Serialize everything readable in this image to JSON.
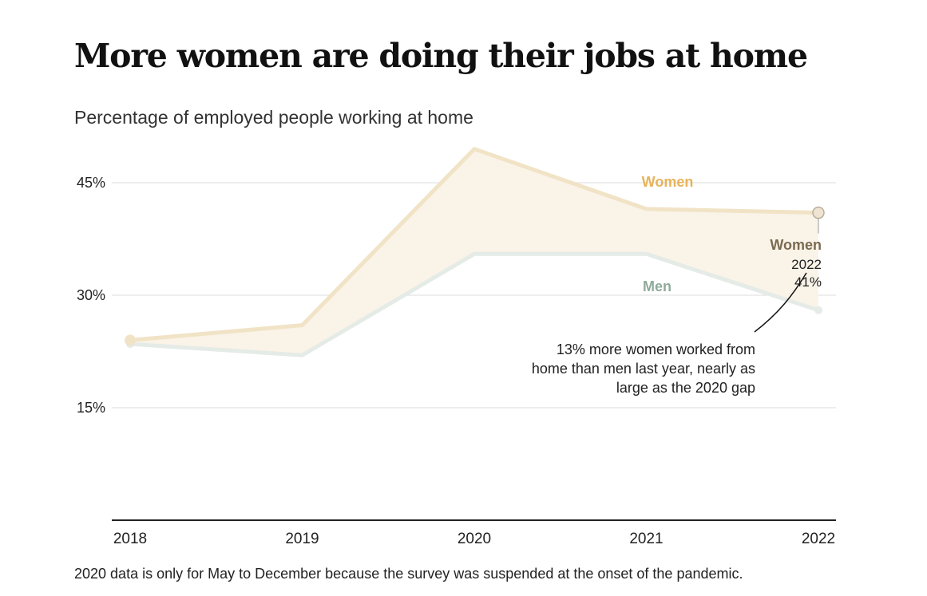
{
  "title": "More women are doing their jobs at home",
  "subtitle": "Percentage of employed people working at home",
  "footnote": "2020 data is only for May to December because the survey was suspended at the onset of the pandemic.",
  "colors": {
    "women": "#e8b35a",
    "women_line": "#f1e3c6",
    "men": "#8faa9b",
    "men_line": "#e5ebe6",
    "fill": "#faf3e8",
    "grid": "#dcdcdc",
    "axis": "#222222",
    "women_label_dark": "#7a6a50"
  },
  "annotation": {
    "series": "Women",
    "year": "2022",
    "value": "41%",
    "note_lines": [
      "13% more women worked from",
      "home than men last year, nearly as",
      "large as the 2020 gap"
    ]
  },
  "chart_data": {
    "type": "area",
    "categories": [
      "2018",
      "2019",
      "2020",
      "2021",
      "2022"
    ],
    "series": [
      {
        "name": "Women",
        "values": [
          24,
          26,
          49.5,
          41.5,
          41
        ]
      },
      {
        "name": "Men",
        "values": [
          23.5,
          22,
          35.5,
          35.5,
          28
        ]
      }
    ],
    "ylim": [
      0,
      45
    ],
    "yticks": [
      15,
      30,
      45
    ],
    "ytick_labels": [
      "15%",
      "30%",
      "45%"
    ],
    "grid": true,
    "xlabel": "",
    "ylabel": ""
  }
}
